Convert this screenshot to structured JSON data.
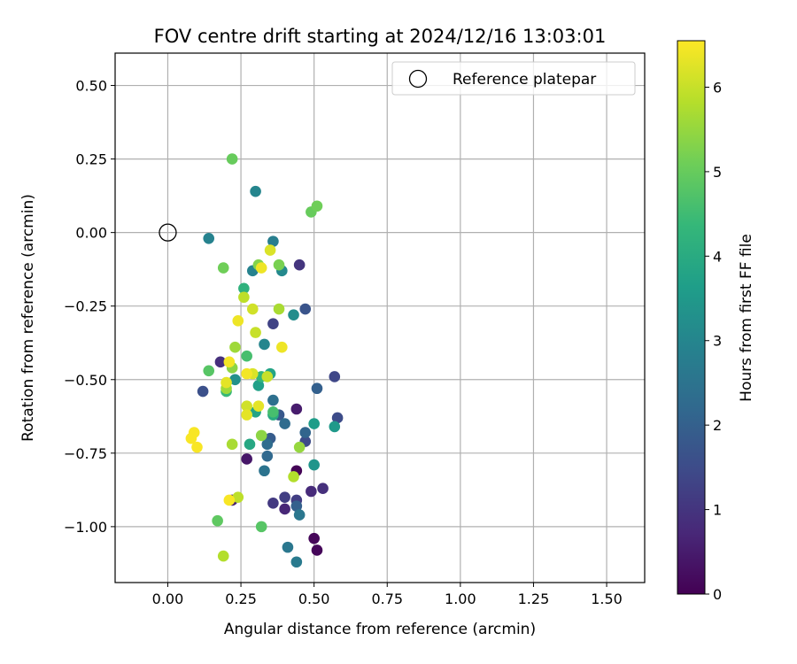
{
  "chart_data": {
    "type": "scatter",
    "title": "FOV centre drift starting at 2024/12/16 13:03:01",
    "xlabel": "Angular distance from reference (arcmin)",
    "ylabel": "Rotation from reference (arcmin)",
    "xlim": [
      -0.18,
      1.63
    ],
    "ylim": [
      -1.19,
      0.61
    ],
    "xticks": [
      0.0,
      0.25,
      0.5,
      0.75,
      1.0,
      1.25,
      1.5
    ],
    "xtick_labels": [
      "0.00",
      "0.25",
      "0.50",
      "0.75",
      "1.00",
      "1.25",
      "1.50"
    ],
    "yticks": [
      0.5,
      0.25,
      0.0,
      -0.25,
      -0.5,
      -0.75,
      -1.0
    ],
    "ytick_labels": [
      "0.50",
      "0.25",
      "0.00",
      "−0.25",
      "−0.50",
      "−0.75",
      "−1.00"
    ],
    "grid": true,
    "colormap": "viridis",
    "reference": {
      "x": 0.0,
      "y": 0.0,
      "label": "Reference platepar"
    },
    "legend_position": "top-right",
    "colorbar": {
      "label": "Hours from first FF file",
      "min": 0,
      "max": 6.55,
      "ticks": [
        0,
        1,
        2,
        3,
        4,
        5,
        6
      ],
      "tick_labels": [
        "0",
        "1",
        "2",
        "3",
        "4",
        "5",
        "6"
      ]
    },
    "points": [
      {
        "x": 0.44,
        "y": -0.81,
        "h": 0.05
      },
      {
        "x": 0.5,
        "y": -1.04,
        "h": 0.1
      },
      {
        "x": 0.51,
        "y": -1.08,
        "h": 0.1
      },
      {
        "x": 0.27,
        "y": -0.77,
        "h": 0.4
      },
      {
        "x": 0.44,
        "y": -0.6,
        "h": 0.5
      },
      {
        "x": 0.22,
        "y": -0.91,
        "h": 0.6
      },
      {
        "x": 0.4,
        "y": -0.94,
        "h": 0.7
      },
      {
        "x": 0.49,
        "y": -0.88,
        "h": 0.8
      },
      {
        "x": 0.53,
        "y": -0.87,
        "h": 0.9
      },
      {
        "x": 0.18,
        "y": -0.44,
        "h": 0.9
      },
      {
        "x": 0.45,
        "y": -0.11,
        "h": 1.0
      },
      {
        "x": 0.36,
        "y": -0.92,
        "h": 1.1
      },
      {
        "x": 0.4,
        "y": -0.9,
        "h": 1.2
      },
      {
        "x": 0.44,
        "y": -0.91,
        "h": 1.2
      },
      {
        "x": 0.36,
        "y": -0.31,
        "h": 1.3
      },
      {
        "x": 0.57,
        "y": -0.49,
        "h": 1.4
      },
      {
        "x": 0.58,
        "y": -0.63,
        "h": 1.5
      },
      {
        "x": 0.47,
        "y": -0.71,
        "h": 1.5
      },
      {
        "x": 0.12,
        "y": -0.54,
        "h": 1.6
      },
      {
        "x": 0.47,
        "y": -0.26,
        "h": 1.7
      },
      {
        "x": 0.38,
        "y": -0.62,
        "h": 1.8
      },
      {
        "x": 0.35,
        "y": -0.7,
        "h": 1.9
      },
      {
        "x": 0.51,
        "y": -0.53,
        "h": 2.0
      },
      {
        "x": 0.44,
        "y": -0.93,
        "h": 2.0
      },
      {
        "x": 0.47,
        "y": -0.68,
        "h": 2.1
      },
      {
        "x": 0.34,
        "y": -0.76,
        "h": 2.2
      },
      {
        "x": 0.4,
        "y": -0.65,
        "h": 2.3
      },
      {
        "x": 0.34,
        "y": -0.72,
        "h": 2.3
      },
      {
        "x": 0.36,
        "y": -0.57,
        "h": 2.4
      },
      {
        "x": 0.33,
        "y": -0.81,
        "h": 2.5
      },
      {
        "x": 0.45,
        "y": -0.96,
        "h": 2.6
      },
      {
        "x": 0.41,
        "y": -1.07,
        "h": 2.6
      },
      {
        "x": 0.44,
        "y": -1.12,
        "h": 2.7
      },
      {
        "x": 0.36,
        "y": -0.03,
        "h": 2.8
      },
      {
        "x": 0.29,
        "y": -0.13,
        "h": 2.9
      },
      {
        "x": 0.14,
        "y": -0.02,
        "h": 2.9
      },
      {
        "x": 0.3,
        "y": 0.14,
        "h": 3.0
      },
      {
        "x": 0.33,
        "y": -0.38,
        "h": 3.0
      },
      {
        "x": 0.39,
        "y": -0.13,
        "h": 3.1
      },
      {
        "x": 0.43,
        "y": -0.28,
        "h": 3.2
      },
      {
        "x": 0.23,
        "y": -0.5,
        "h": 3.3
      },
      {
        "x": 0.5,
        "y": -0.79,
        "h": 3.4
      },
      {
        "x": 0.57,
        "y": -0.66,
        "h": 3.5
      },
      {
        "x": 0.5,
        "y": -0.65,
        "h": 3.6
      },
      {
        "x": 0.31,
        "y": -0.52,
        "h": 3.7
      },
      {
        "x": 0.3,
        "y": -0.61,
        "h": 3.8
      },
      {
        "x": 0.35,
        "y": -0.48,
        "h": 3.8
      },
      {
        "x": 0.28,
        "y": -0.72,
        "h": 3.9
      },
      {
        "x": 0.36,
        "y": -0.62,
        "h": 4.0
      },
      {
        "x": 0.26,
        "y": -0.19,
        "h": 4.2
      },
      {
        "x": 0.32,
        "y": -0.49,
        "h": 4.3
      },
      {
        "x": 0.2,
        "y": -0.54,
        "h": 4.4
      },
      {
        "x": 0.27,
        "y": -0.42,
        "h": 4.6
      },
      {
        "x": 0.36,
        "y": -0.61,
        "h": 4.6
      },
      {
        "x": 0.14,
        "y": -0.47,
        "h": 4.8
      },
      {
        "x": 0.32,
        "y": -1.0,
        "h": 4.8
      },
      {
        "x": 0.17,
        "y": -0.98,
        "h": 4.9
      },
      {
        "x": 0.22,
        "y": 0.25,
        "h": 5.0
      },
      {
        "x": 0.49,
        "y": 0.07,
        "h": 5.0
      },
      {
        "x": 0.51,
        "y": 0.09,
        "h": 5.1
      },
      {
        "x": 0.19,
        "y": -0.12,
        "h": 5.1
      },
      {
        "x": 0.38,
        "y": -0.11,
        "h": 5.2
      },
      {
        "x": 0.31,
        "y": -0.11,
        "h": 5.3
      },
      {
        "x": 0.22,
        "y": -0.46,
        "h": 5.4
      },
      {
        "x": 0.32,
        "y": -0.69,
        "h": 5.4
      },
      {
        "x": 0.45,
        "y": -0.73,
        "h": 5.5
      },
      {
        "x": 0.2,
        "y": -0.53,
        "h": 5.6
      },
      {
        "x": 0.23,
        "y": -0.39,
        "h": 5.6
      },
      {
        "x": 0.22,
        "y": -0.72,
        "h": 5.7
      },
      {
        "x": 0.38,
        "y": -0.26,
        "h": 5.7
      },
      {
        "x": 0.43,
        "y": -0.83,
        "h": 5.8
      },
      {
        "x": 0.19,
        "y": -1.1,
        "h": 5.8
      },
      {
        "x": 0.24,
        "y": -0.9,
        "h": 5.9
      },
      {
        "x": 0.26,
        "y": -0.22,
        "h": 5.9
      },
      {
        "x": 0.34,
        "y": -0.49,
        "h": 6.0
      },
      {
        "x": 0.3,
        "y": -0.34,
        "h": 6.0
      },
      {
        "x": 0.29,
        "y": -0.26,
        "h": 6.1
      },
      {
        "x": 0.27,
        "y": -0.59,
        "h": 6.1
      },
      {
        "x": 0.35,
        "y": -0.06,
        "h": 6.2
      },
      {
        "x": 0.29,
        "y": -0.48,
        "h": 6.2
      },
      {
        "x": 0.31,
        "y": -0.59,
        "h": 6.3
      },
      {
        "x": 0.2,
        "y": -0.51,
        "h": 6.3
      },
      {
        "x": 0.27,
        "y": -0.62,
        "h": 6.3
      },
      {
        "x": 0.39,
        "y": -0.39,
        "h": 6.4
      },
      {
        "x": 0.32,
        "y": -0.12,
        "h": 6.4
      },
      {
        "x": 0.24,
        "y": -0.3,
        "h": 6.4
      },
      {
        "x": 0.21,
        "y": -0.44,
        "h": 6.45
      },
      {
        "x": 0.27,
        "y": -0.48,
        "h": 6.45
      },
      {
        "x": 0.09,
        "y": -0.68,
        "h": 6.5
      },
      {
        "x": 0.08,
        "y": -0.7,
        "h": 6.5
      },
      {
        "x": 0.1,
        "y": -0.73,
        "h": 6.5
      },
      {
        "x": 0.21,
        "y": -0.91,
        "h": 6.5
      }
    ]
  }
}
